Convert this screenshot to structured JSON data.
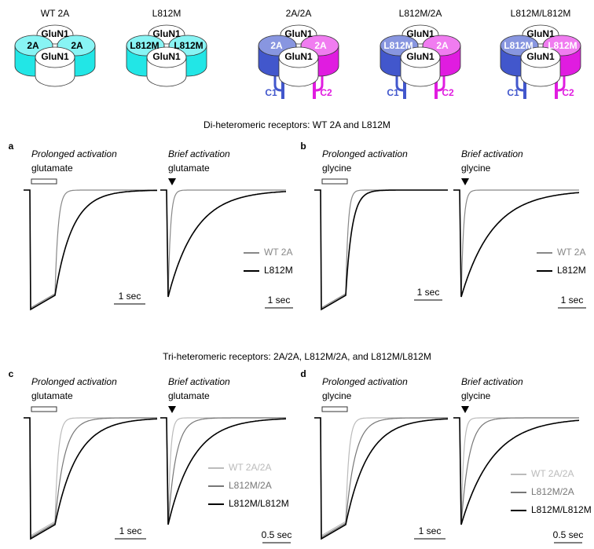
{
  "receptors": [
    {
      "title": "WT 2A",
      "subunits": [
        "2A",
        "GluN1",
        "GluN1",
        "2A"
      ]
    },
    {
      "title": "L812M",
      "subunits": [
        "L812M",
        "GluN1",
        "GluN1",
        "L812M"
      ]
    },
    {
      "title": "2A/2A",
      "subunits": [
        "2A",
        "GluN1",
        "GluN1",
        "2A"
      ],
      "tails": [
        "C1",
        "C2"
      ]
    },
    {
      "title": "L812M/2A",
      "subunits": [
        "L812M",
        "GluN1",
        "GluN1",
        "2A"
      ],
      "tails": [
        "C1",
        "C2"
      ]
    },
    {
      "title": "L812M/L812M",
      "subunits": [
        "L812M",
        "GluN1",
        "GluN1",
        "L812M"
      ],
      "tails": [
        "C1",
        "C2"
      ]
    }
  ],
  "sections": [
    {
      "title": "Di-heteromeric receptors: WT 2A and L812M",
      "panels": [
        {
          "label": "a",
          "traces": [
            {
              "title": "Prolonged activation",
              "agonist": "glutamate",
              "scale": "1 sec"
            },
            {
              "title": "Brief activation",
              "agonist": "glutamate",
              "scale": "1 sec"
            }
          ],
          "legend": [
            "WT 2A",
            "L812M"
          ]
        },
        {
          "label": "b",
          "traces": [
            {
              "title": "Prolonged activation",
              "agonist": "glycine",
              "scale": "1 sec"
            },
            {
              "title": "Brief activation",
              "agonist": "glycine",
              "scale": "1 sec"
            }
          ],
          "legend": [
            "WT 2A",
            "L812M"
          ]
        }
      ]
    },
    {
      "title": "Tri-heteromeric receptors: 2A/2A, L812M/2A, and L812M/L812M",
      "panels": [
        {
          "label": "c",
          "traces": [
            {
              "title": "Prolonged activation",
              "agonist": "glutamate",
              "scale": "1 sec"
            },
            {
              "title": "Brief activation",
              "agonist": "glutamate",
              "scale": "0.5 sec"
            }
          ],
          "legend": [
            "WT 2A/2A",
            "L812M/2A",
            "L812M/L812M"
          ]
        },
        {
          "label": "d",
          "traces": [
            {
              "title": "Prolonged activation",
              "agonist": "glycine",
              "scale": "1 sec"
            },
            {
              "title": "Brief activation",
              "agonist": "glycine",
              "scale": "0.5 sec"
            }
          ],
          "legend": [
            "WT 2A/2A",
            "L812M/2A",
            "L812M/L812M"
          ]
        }
      ]
    }
  ]
}
